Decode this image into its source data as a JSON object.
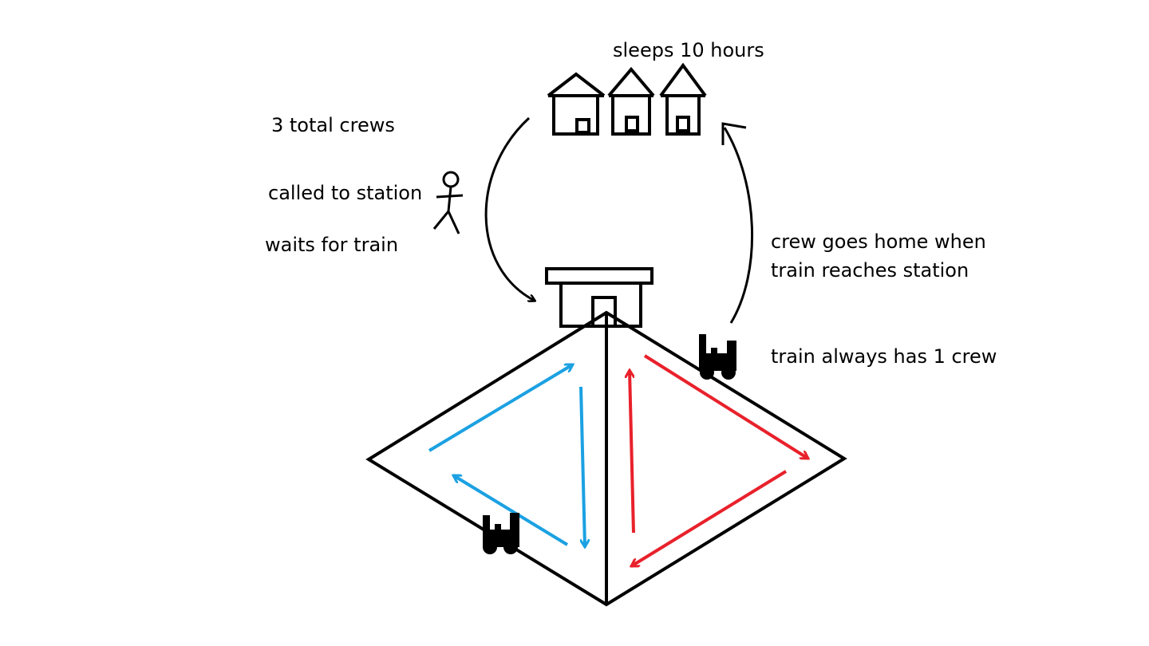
{
  "labels": {
    "sleeps": "sleeps 10 hours",
    "total_crews": "3 total crews",
    "called": "called to station",
    "waits": "waits for train",
    "goes_home": "crew goes home when train reaches station",
    "always_crew": "train always has 1 crew"
  },
  "colors": {
    "ink": "#000000",
    "left_loop": "#1ba1e2",
    "right_loop": "#e8212b",
    "background": "#ffffff"
  },
  "icons": [
    "house-icon",
    "stick-figure-icon",
    "station-building-icon",
    "locomotive-icon"
  ]
}
